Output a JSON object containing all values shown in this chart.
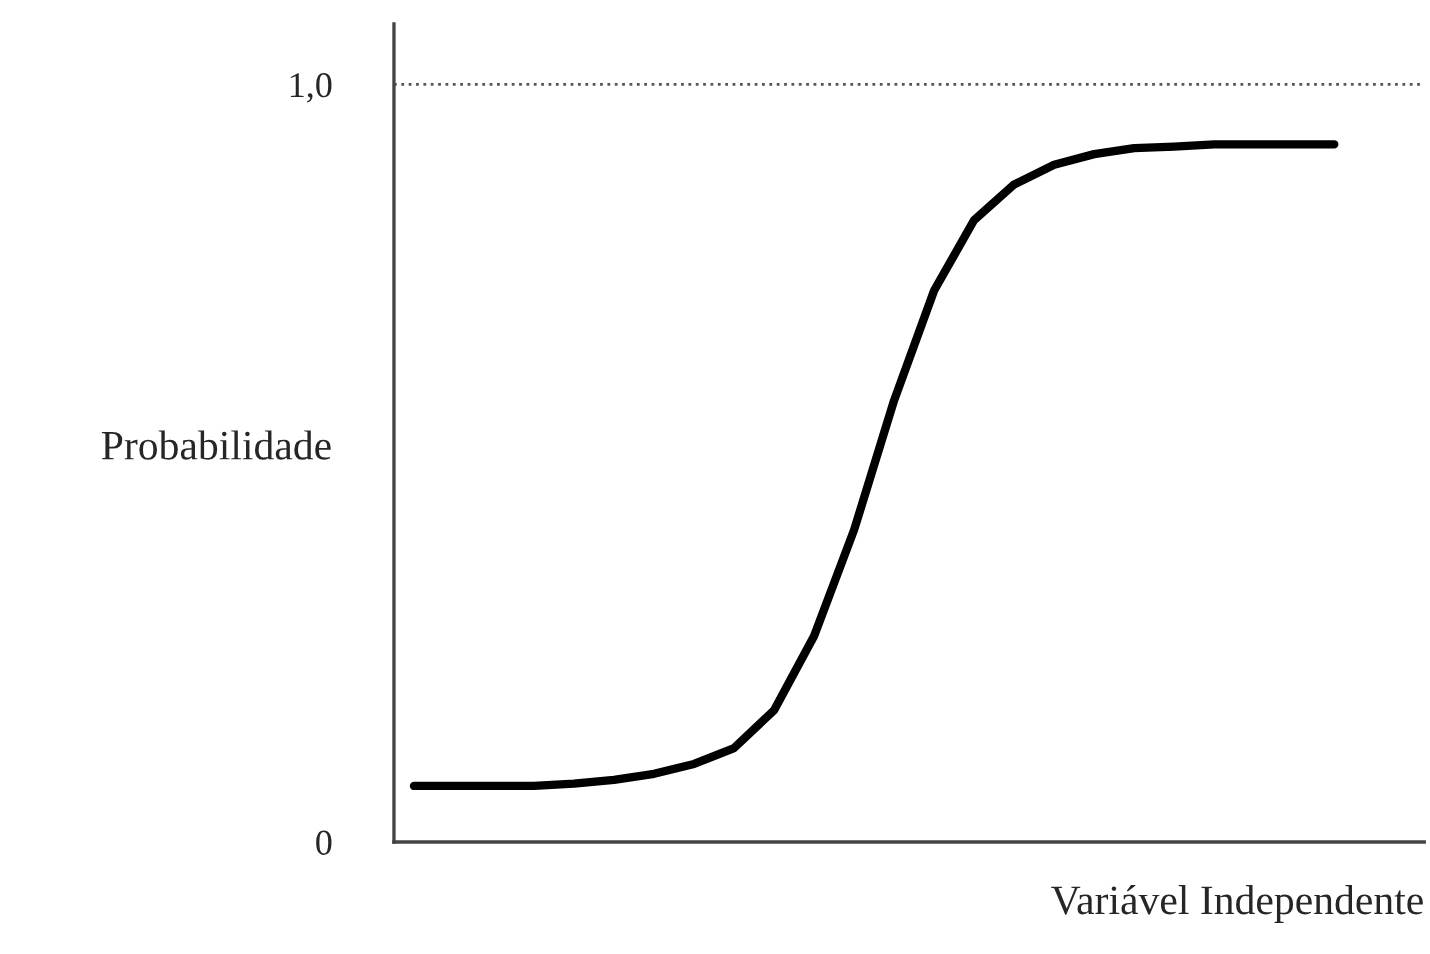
{
  "chart_data": {
    "type": "line",
    "xlabel": "Variável Independente",
    "ylabel": "Probabilidade",
    "categories": [
      null,
      null,
      null,
      null,
      null,
      null,
      null,
      null,
      null,
      null,
      null,
      null,
      null,
      null,
      null,
      null,
      null,
      null,
      null,
      null,
      null,
      null,
      null,
      null
    ],
    "series": [
      {
        "color": "#000000",
        "values": [
          0.074,
          0.074,
          0.074,
          0.074,
          0.077,
          0.082,
          0.09,
          0.103,
          0.124,
          0.174,
          0.272,
          0.412,
          0.583,
          0.728,
          0.821,
          0.868,
          0.894,
          0.908,
          0.916,
          0.918,
          0.921,
          0.921,
          0.921,
          0.921
        ]
      }
    ],
    "ylim": [
      0,
      1.08
    ],
    "yticks": [
      {
        "value": 0,
        "label": "0"
      },
      {
        "value": 1,
        "label": "1,0"
      }
    ],
    "ref_lines": [
      {
        "axis": "y",
        "value": 1,
        "color": "#555555",
        "line_style": "dotted"
      }
    ],
    "grid": false,
    "marker": "none",
    "line_style": "solid"
  }
}
